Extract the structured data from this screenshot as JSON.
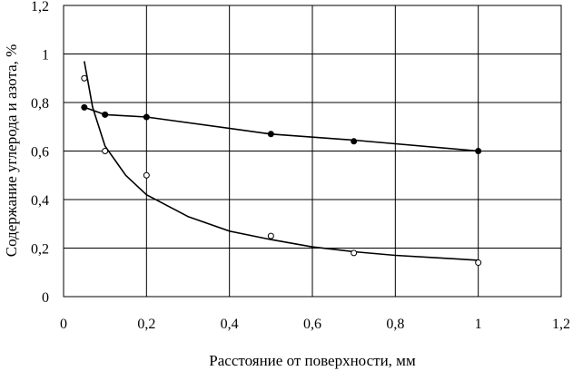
{
  "chart_data": {
    "type": "scatter",
    "title": "",
    "xlabel": "Расстояние от  поверхности, мм",
    "ylabel": "Содержание углерода и азота, %",
    "xlim": [
      0,
      1.2
    ],
    "ylim": [
      0,
      1.2
    ],
    "xticks": [
      "0",
      "0,2",
      "0,4",
      "0,6",
      "0,8",
      "1",
      "1,2"
    ],
    "yticks": [
      "0",
      "0,2",
      "0,4",
      "0,6",
      "0,8",
      "1",
      "1,2"
    ],
    "grid": true,
    "legend": "none",
    "series": [
      {
        "marker": "filled-circle",
        "points": [
          {
            "x": 0.05,
            "y": 0.78
          },
          {
            "x": 0.1,
            "y": 0.75
          },
          {
            "x": 0.2,
            "y": 0.74
          },
          {
            "x": 0.5,
            "y": 0.67
          },
          {
            "x": 0.7,
            "y": 0.64
          },
          {
            "x": 1.0,
            "y": 0.6
          }
        ],
        "trend": [
          {
            "x": 0.05,
            "y": 0.78
          },
          {
            "x": 0.1,
            "y": 0.75
          },
          {
            "x": 0.2,
            "y": 0.74
          },
          {
            "x": 0.5,
            "y": 0.67
          },
          {
            "x": 0.7,
            "y": 0.645
          },
          {
            "x": 1.0,
            "y": 0.6
          }
        ]
      },
      {
        "marker": "open-circle",
        "points": [
          {
            "x": 0.05,
            "y": 0.9
          },
          {
            "x": 0.1,
            "y": 0.6
          },
          {
            "x": 0.2,
            "y": 0.5
          },
          {
            "x": 0.5,
            "y": 0.25
          },
          {
            "x": 0.7,
            "y": 0.18
          },
          {
            "x": 1.0,
            "y": 0.14
          }
        ],
        "trend": [
          {
            "x": 0.05,
            "y": 0.97
          },
          {
            "x": 0.07,
            "y": 0.78
          },
          {
            "x": 0.1,
            "y": 0.62
          },
          {
            "x": 0.15,
            "y": 0.5
          },
          {
            "x": 0.2,
            "y": 0.42
          },
          {
            "x": 0.3,
            "y": 0.33
          },
          {
            "x": 0.4,
            "y": 0.27
          },
          {
            "x": 0.5,
            "y": 0.235
          },
          {
            "x": 0.6,
            "y": 0.205
          },
          {
            "x": 0.7,
            "y": 0.185
          },
          {
            "x": 0.8,
            "y": 0.17
          },
          {
            "x": 0.9,
            "y": 0.16
          },
          {
            "x": 1.0,
            "y": 0.15
          }
        ]
      }
    ]
  }
}
